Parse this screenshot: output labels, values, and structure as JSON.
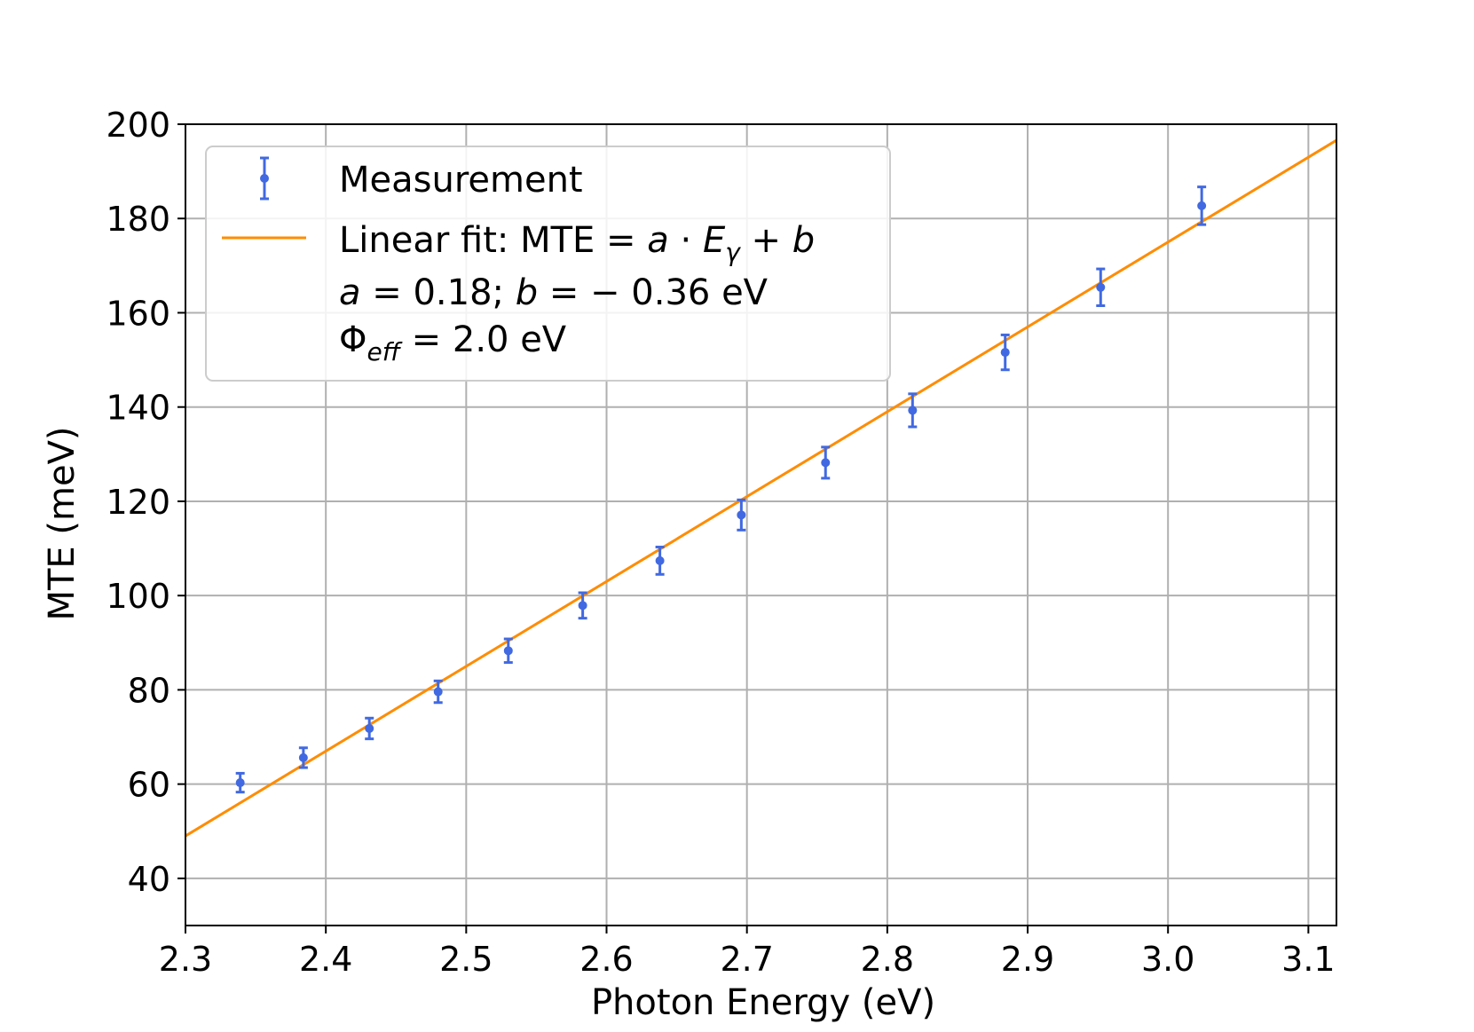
{
  "chart_data": {
    "type": "scatter",
    "title": "",
    "xlabel": "Photon Energy (eV)",
    "ylabel": "MTE (meV)",
    "xlim": [
      2.3,
      3.12
    ],
    "ylim": [
      30,
      200
    ],
    "xticks": [
      2.3,
      2.4,
      2.5,
      2.6,
      2.7,
      2.8,
      2.9,
      3.0,
      3.1
    ],
    "xtick_labels": [
      "2.3",
      "2.4",
      "2.5",
      "2.6",
      "2.7",
      "2.8",
      "2.9",
      "3.0",
      "3.1"
    ],
    "yticks": [
      40,
      60,
      80,
      100,
      120,
      140,
      160,
      180,
      200
    ],
    "ytick_labels": [
      "40",
      "60",
      "80",
      "100",
      "120",
      "140",
      "160",
      "180",
      "200"
    ],
    "grid": true,
    "legend_position": "top-left",
    "series": [
      {
        "name": "Measurement",
        "kind": "errorbar",
        "color": "#4169e1",
        "x": [
          2.339,
          2.384,
          2.431,
          2.48,
          2.53,
          2.583,
          2.638,
          2.696,
          2.756,
          2.818,
          2.884,
          2.952,
          3.024
        ],
        "y": [
          60.3,
          65.6,
          71.8,
          79.6,
          88.3,
          97.9,
          107.4,
          117.1,
          128.2,
          139.3,
          151.6,
          165.4,
          182.7
        ],
        "yerr": [
          2.0,
          2.1,
          2.2,
          2.3,
          2.5,
          2.7,
          2.9,
          3.2,
          3.3,
          3.5,
          3.7,
          3.9,
          4.0
        ]
      },
      {
        "name": "Linear fit",
        "kind": "line",
        "color": "#ff8c00",
        "x": [
          2.3,
          3.12
        ],
        "y": [
          49.0,
          196.6
        ]
      }
    ],
    "legend": {
      "measurement_label": "Measurement",
      "fit_label_prefix": "Linear fit: MTE = ",
      "fit_label_formula_a": "a",
      "fit_label_formula_dot": " · ",
      "fit_label_formula_E": "E",
      "fit_label_formula_gamma": "γ",
      "fit_label_formula_plus": " + ",
      "fit_label_formula_b": "b",
      "params_a": "a",
      "params_a_value": " = 0.18; ",
      "params_b": "b",
      "params_b_value": " = − 0.36 eV",
      "phi_symbol": "Φ",
      "phi_subscript": "eff",
      "phi_value": " = 2.0 eV"
    },
    "colors": {
      "measurement": "#4169e1",
      "fit": "#ff8c00",
      "grid": "#b0b0b0"
    }
  }
}
